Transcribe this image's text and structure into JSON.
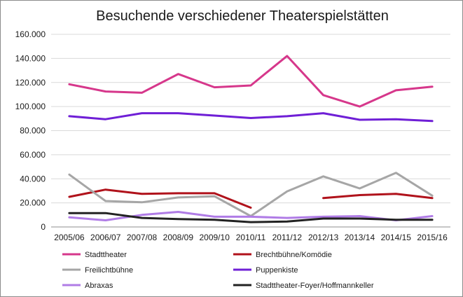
{
  "chart_data": {
    "type": "line",
    "title": "Besuchende verschiedener Theaterspielstätten",
    "xlabel": "",
    "ylabel": "",
    "ylim": [
      0,
      160000
    ],
    "ytick_labels": [
      "0",
      "20.000",
      "40.000",
      "60.000",
      "80.000",
      "100.000",
      "120.000",
      "140.000",
      "160.000"
    ],
    "categories": [
      "2005/06",
      "2006/07",
      "2007/08",
      "2008/09",
      "2009/10",
      "2010/11",
      "2011/12",
      "2012/13",
      "2013/14",
      "2014/15",
      "2015/16"
    ],
    "grid": true,
    "legend_position": "bottom",
    "series": [
      {
        "name": "Stadttheater",
        "color": "#d6378b",
        "values": [
          118500,
          112500,
          111500,
          127000,
          116000,
          117500,
          142000,
          109500,
          100000,
          113500,
          116500
        ]
      },
      {
        "name": "Brechtbühne/Komödie",
        "color": "#b0121b",
        "values": [
          25000,
          31000,
          27500,
          28000,
          28000,
          16000,
          null,
          24000,
          26500,
          27500,
          24000
        ]
      },
      {
        "name": "Freilichtbühne",
        "color": "#a6a6a6",
        "values": [
          43500,
          21500,
          20500,
          24500,
          25500,
          9000,
          29500,
          42000,
          32000,
          45000,
          26000
        ]
      },
      {
        "name": "Puppenkiste",
        "color": "#6f1fd6",
        "values": [
          92000,
          89500,
          94500,
          94500,
          92500,
          90500,
          92000,
          94500,
          89000,
          89500,
          88000
        ]
      },
      {
        "name": "Abraxas",
        "color": "#b07ce6",
        "values": [
          8000,
          5500,
          10000,
          12500,
          8500,
          8500,
          7500,
          8500,
          9000,
          5500,
          9000
        ]
      },
      {
        "name": "Stadttheater-Foyer/Hoffmannkeller",
        "color": "#222222",
        "values": [
          11500,
          11500,
          7500,
          6500,
          6000,
          4000,
          4500,
          7000,
          7000,
          6000,
          6000
        ]
      }
    ]
  }
}
